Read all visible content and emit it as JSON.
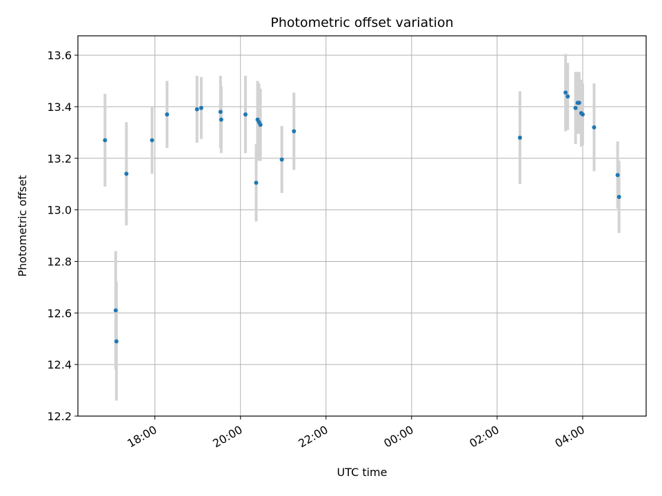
{
  "chart_data": {
    "type": "scatter",
    "title": "Photometric offset variation",
    "xlabel": "UTC time",
    "ylabel": "Photometric offset",
    "x_tick_labels": [
      "18:00",
      "20:00",
      "22:00",
      "00:00",
      "02:00",
      "04:00"
    ],
    "y_tick_labels": [
      "12.2",
      "12.4",
      "12.6",
      "12.8",
      "13.0",
      "13.2",
      "13.4",
      "13.6"
    ],
    "y_ticks": [
      12.2,
      12.4,
      12.6,
      12.8,
      13.0,
      13.2,
      13.4,
      13.6
    ],
    "ylim": [
      12.2,
      13.675
    ],
    "xlim": [
      "16:12",
      "05:29"
    ],
    "x_tick_times": [
      "18:00",
      "20:00",
      "22:00",
      "00:00",
      "02:00",
      "04:00"
    ],
    "grid": true,
    "marker_color": "#1f77b4",
    "errorbar_color": "#d3d3d3",
    "points": [
      {
        "t": "16:50",
        "y": 13.27,
        "err": 0.18
      },
      {
        "t": "17:05",
        "y": 12.61,
        "err": 0.23
      },
      {
        "t": "17:06",
        "y": 12.49,
        "err": 0.23
      },
      {
        "t": "17:20",
        "y": 13.14,
        "err": 0.2
      },
      {
        "t": "17:56",
        "y": 13.27,
        "err": 0.13
      },
      {
        "t": "18:17",
        "y": 13.37,
        "err": 0.13
      },
      {
        "t": "18:59",
        "y": 13.39,
        "err": 0.13
      },
      {
        "t": "19:05",
        "y": 13.395,
        "err": 0.12
      },
      {
        "t": "19:32",
        "y": 13.38,
        "err": 0.14
      },
      {
        "t": "19:33",
        "y": 13.35,
        "err": 0.13
      },
      {
        "t": "20:07",
        "y": 13.37,
        "err": 0.15
      },
      {
        "t": "20:22",
        "y": 13.105,
        "err": 0.15
      },
      {
        "t": "20:24",
        "y": 13.35,
        "err": 0.15
      },
      {
        "t": "20:26",
        "y": 13.34,
        "err": 0.15
      },
      {
        "t": "20:28",
        "y": 13.33,
        "err": 0.14
      },
      {
        "t": "20:58",
        "y": 13.195,
        "err": 0.13
      },
      {
        "t": "21:15",
        "y": 13.305,
        "err": 0.15
      },
      {
        "t": "02:32",
        "y": 13.28,
        "err": 0.18
      },
      {
        "t": "03:36",
        "y": 13.455,
        "err": 0.15
      },
      {
        "t": "03:39",
        "y": 13.44,
        "err": 0.13
      },
      {
        "t": "03:50",
        "y": 13.395,
        "err": 0.14
      },
      {
        "t": "03:53",
        "y": 13.415,
        "err": 0.12
      },
      {
        "t": "03:55",
        "y": 13.415,
        "err": 0.12
      },
      {
        "t": "03:58",
        "y": 13.375,
        "err": 0.13
      },
      {
        "t": "04:00",
        "y": 13.37,
        "err": 0.12
      },
      {
        "t": "04:16",
        "y": 13.32,
        "err": 0.17
      },
      {
        "t": "04:49",
        "y": 13.135,
        "err": 0.13
      },
      {
        "t": "04:51",
        "y": 13.05,
        "err": 0.14
      }
    ]
  }
}
